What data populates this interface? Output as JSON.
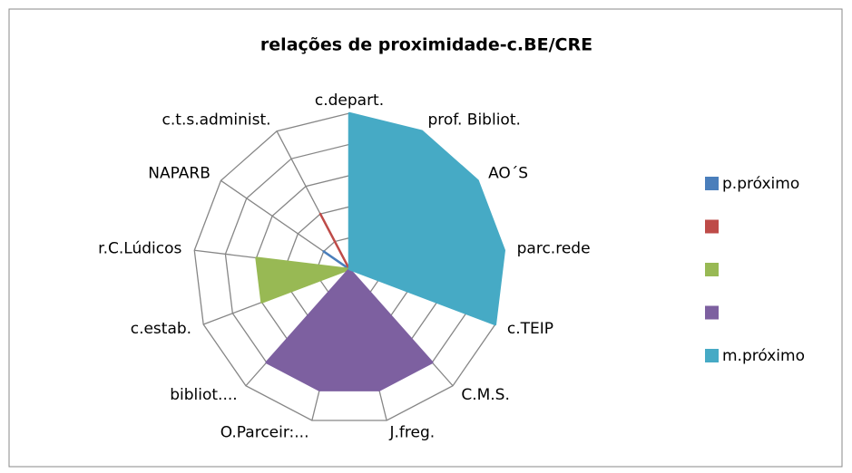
{
  "chart_data": {
    "type": "radar",
    "title": "relações de proximidade-c.BE/CRE",
    "categories": [
      "c.depart.",
      "prof. Bibliot.",
      "AO´S",
      "parc.rede",
      "c.TEIP",
      "C.M.S.",
      "J.freg.",
      "O.Parceir:...",
      "bibliot....",
      "c.estab.",
      "r.C.Lúdicos",
      "NAPARB",
      "c.t.s.administ."
    ],
    "series": [
      {
        "name": "p.próximo",
        "color": "#4a7ebb",
        "values": [
          0,
          0,
          0,
          0,
          0,
          0,
          0,
          0,
          0,
          0,
          0,
          1,
          0
        ]
      },
      {
        "name": null,
        "color": "#be4b48",
        "values": [
          0,
          0,
          0,
          0,
          0,
          0,
          0,
          0,
          0,
          0,
          0,
          0,
          2
        ]
      },
      {
        "name": null,
        "color": "#98b954",
        "values": [
          0,
          0,
          0,
          0,
          0,
          0,
          0,
          0,
          0,
          3,
          3,
          0,
          0
        ]
      },
      {
        "name": null,
        "color": "#7d60a0",
        "values": [
          0,
          0,
          0,
          0,
          0,
          4,
          4,
          4,
          4,
          0,
          0,
          0,
          0
        ]
      },
      {
        "name": "m.próximo",
        "color": "#46aac5",
        "values": [
          5,
          5,
          5,
          5,
          5,
          0,
          0,
          0,
          0,
          0,
          0,
          0,
          0
        ]
      }
    ],
    "rlim": [
      0,
      5
    ],
    "rticks": [
      1,
      2,
      3,
      4,
      5
    ],
    "grid": true,
    "legend": "right"
  }
}
